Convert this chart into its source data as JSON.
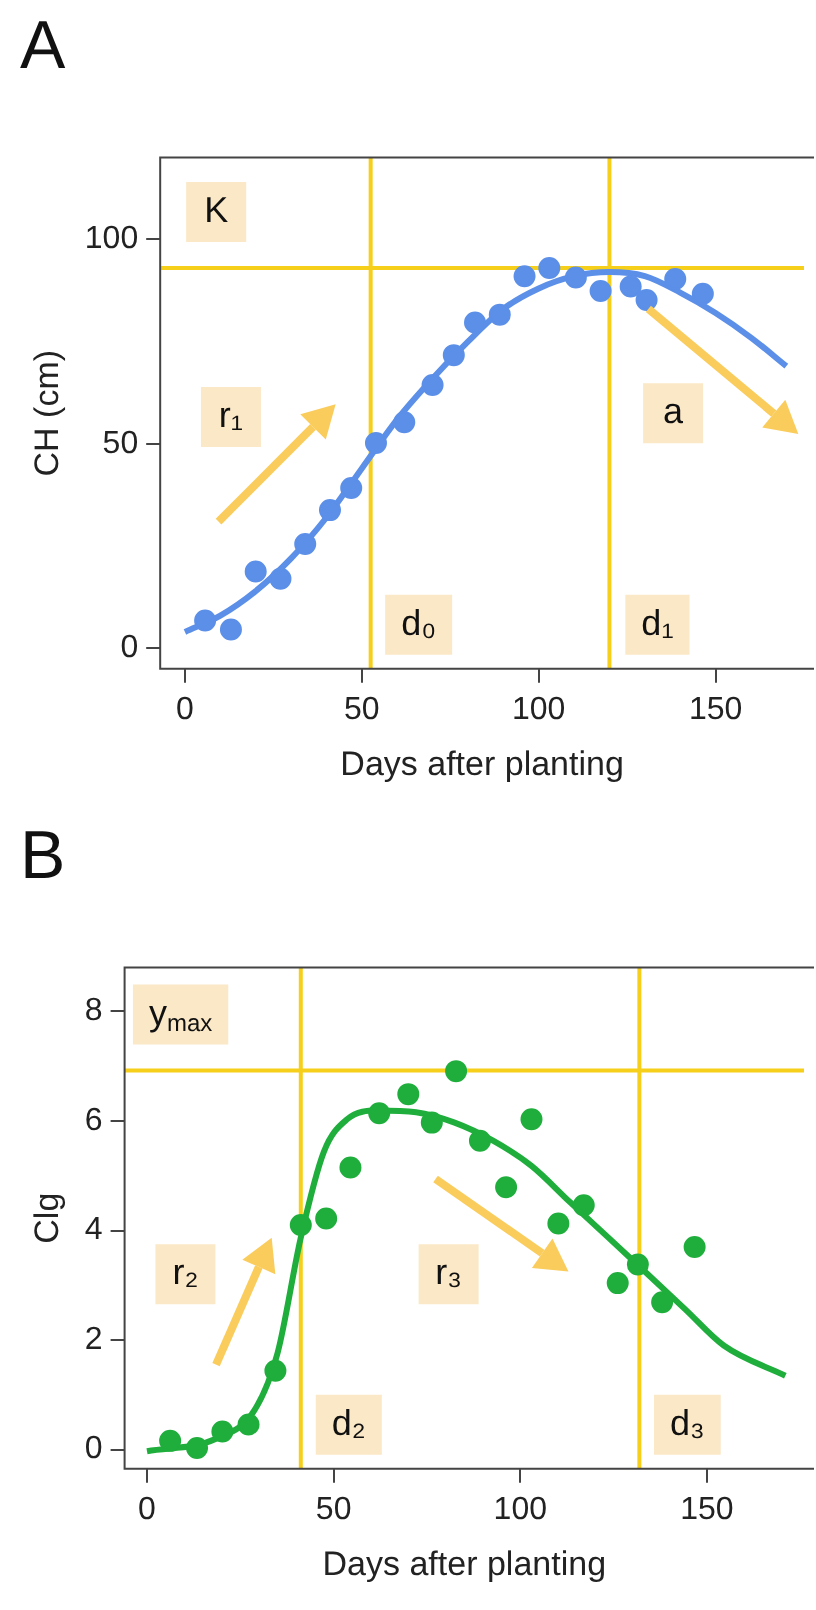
{
  "chart_data": [
    {
      "type": "scatter",
      "title": "A",
      "xlabel": "Days after planting",
      "ylabel": "CH (cm)",
      "xlim": [
        -7,
        175
      ],
      "xticks": [
        0,
        50,
        100,
        150
      ],
      "ylim": [
        -5,
        120
      ],
      "yticks": [
        0,
        50,
        100
      ],
      "legend": false,
      "series": [
        {
          "type": "scatter",
          "marker": "circle",
          "color": "#5b8fe8",
          "x": [
            5.7,
            13,
            20,
            27,
            34,
            41,
            47,
            54,
            62,
            70,
            76,
            82,
            89,
            96,
            103,
            110.5,
            117.5,
            126,
            130.5,
            138.6,
            146.4
          ],
          "values": [
            6.8,
            4.6,
            18.8,
            17,
            25.5,
            33.8,
            39.2,
            50.2,
            55.3,
            64.4,
            71.7,
            79.7,
            81.6,
            91,
            93,
            90.7,
            87.4,
            88.5,
            85.2,
            90.3,
            86.7
          ]
        },
        {
          "type": "line",
          "marker": "none",
          "color": "#5b8fe8",
          "line_style": "solid",
          "x": [
            0,
            10,
            20,
            30,
            40,
            50,
            60,
            70,
            80,
            90,
            100,
            110,
            120,
            130,
            140,
            150,
            160,
            170
          ],
          "values": [
            4,
            8,
            14,
            22,
            32,
            44,
            56,
            66,
            75,
            83,
            88,
            91,
            92,
            91,
            87,
            82,
            76,
            69
          ]
        }
      ],
      "ref_lines": [
        {
          "axis": "y",
          "value": 93,
          "label": "K",
          "color": "#f5cf1a"
        },
        {
          "axis": "x",
          "value": 52.5,
          "label": "d₀",
          "color": "#f5cf1a"
        },
        {
          "axis": "x",
          "value": 120,
          "label": "d₁",
          "color": "#f5cf1a"
        }
      ],
      "annotations": [
        {
          "text": "r₁",
          "x": 13,
          "y": 56.6
        },
        {
          "text": "a",
          "x": 138,
          "y": 57.5
        }
      ]
    },
    {
      "type": "scatter",
      "title": "B",
      "xlabel": "Days after planting",
      "ylabel": "Clg",
      "xlim": [
        -6,
        176
      ],
      "xticks": [
        0,
        50,
        100,
        150
      ],
      "ylim": [
        -0.35,
        8.8
      ],
      "yticks": [
        0,
        2,
        4,
        6,
        8
      ],
      "legend": false,
      "series": [
        {
          "type": "scatter",
          "marker": "circle",
          "color": "#1fae3c",
          "x": [
            6.2,
            13.4,
            20.2,
            27.2,
            34.4,
            41.2,
            48,
            54.5,
            62.2,
            70,
            76.3,
            82.8,
            89.2,
            96.2,
            103,
            110.2,
            117,
            126.1,
            131.5,
            138,
            146.7
          ],
          "values": [
            0.16,
            0.03,
            0.33,
            0.46,
            1.44,
            4.1,
            4.22,
            5.15,
            6.14,
            6.49,
            5.97,
            6.91,
            5.64,
            4.79,
            6.03,
            4.13,
            4.46,
            3.04,
            3.38,
            2.69,
            3.7
          ]
        },
        {
          "type": "line",
          "marker": "none",
          "color": "#1fae3c",
          "line_style": "solid",
          "x": [
            0,
            18.5,
            28.8,
            35,
            41.2,
            47.4,
            53.6,
            61.8,
            72.1,
            82.4,
            92.7,
            103,
            113.3,
            123.6,
            134,
            144.2,
            154.5,
            171
          ],
          "values": [
            -0.03,
            0.2,
            0.72,
            1.77,
            3.87,
            5.44,
            6.03,
            6.19,
            6.16,
            5.97,
            5.64,
            5.18,
            4.52,
            3.87,
            3.21,
            2.56,
            1.9,
            1.35
          ]
        }
      ],
      "ref_lines": [
        {
          "axis": "y",
          "value": 6.92,
          "label": "y$_{max}$",
          "color": "#f5cf1a"
        },
        {
          "axis": "x",
          "value": 41.2,
          "label": "d₂",
          "color": "#f5cf1a"
        },
        {
          "axis": "x",
          "value": 131.9,
          "label": "d₃",
          "color": "#f5cf1a"
        }
      ],
      "annotations": [
        {
          "text": "r₂",
          "x": 10.3,
          "y": 3.2
        },
        {
          "text": "r₃",
          "x": 80.8,
          "y": 3.2
        }
      ]
    }
  ]
}
